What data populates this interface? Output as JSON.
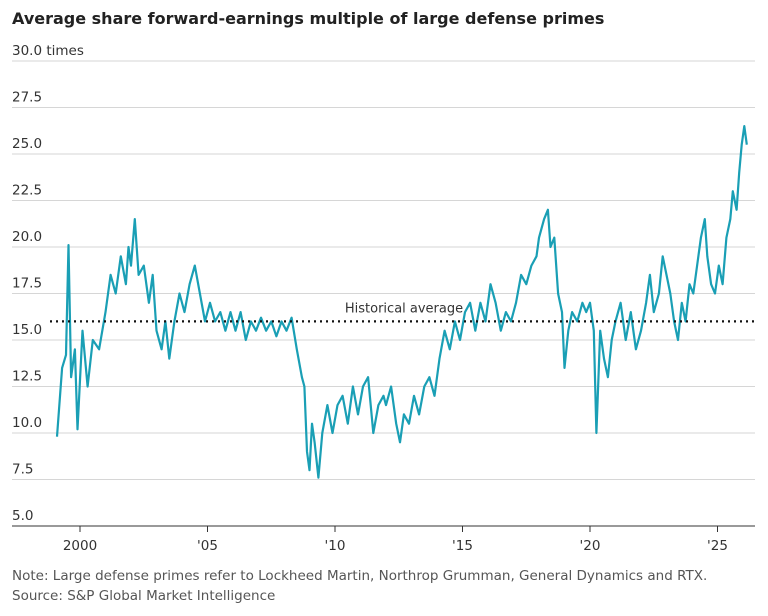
{
  "chart_data": {
    "type": "line",
    "title": "Average share forward-earnings multiple of large defense primes",
    "note": "Note: Large defense primes refer to Lockheed Martin, Northrop Grumman, General Dynamics and RTX.",
    "source": "Source: S&P Global Market Intelligence",
    "color": "#1a9fb5",
    "grid": true,
    "reference_line": {
      "value": 16,
      "label": "Historical average"
    },
    "xlim": [
      1998.8,
      2026.9
    ],
    "xticks": [
      {
        "value": 2000,
        "label": "2000"
      },
      {
        "value": 2005,
        "label": "'05"
      },
      {
        "value": 2010,
        "label": "'10"
      },
      {
        "value": 2015,
        "label": "'15"
      },
      {
        "value": 2020,
        "label": "'20"
      },
      {
        "value": 2025,
        "label": "'25"
      }
    ],
    "ylim": [
      5,
      30
    ],
    "yticks": [
      {
        "value": 5,
        "label": "5.0"
      },
      {
        "value": 7.5,
        "label": "7.5"
      },
      {
        "value": 10,
        "label": "10.0"
      },
      {
        "value": 12.5,
        "label": "12.5"
      },
      {
        "value": 15,
        "label": "15.0"
      },
      {
        "value": 17.5,
        "label": "17.5"
      },
      {
        "value": 20,
        "label": "20.0"
      },
      {
        "value": 22.5,
        "label": "22.5"
      },
      {
        "value": 25,
        "label": "25.0"
      },
      {
        "value": 27.5,
        "label": "27.5"
      },
      {
        "value": 30,
        "label": "30.0 times"
      }
    ],
    "x": [
      1999.1,
      1999.3,
      1999.45,
      1999.55,
      1999.65,
      1999.8,
      1999.9,
      2000.1,
      2000.3,
      2000.5,
      2000.75,
      2001.0,
      2001.2,
      2001.4,
      2001.6,
      2001.8,
      2001.9,
      2002.0,
      2002.15,
      2002.3,
      2002.5,
      2002.7,
      2002.85,
      2003.0,
      2003.2,
      2003.35,
      2003.5,
      2003.7,
      2003.9,
      2004.1,
      2004.3,
      2004.5,
      2004.7,
      2004.9,
      2005.1,
      2005.3,
      2005.5,
      2005.7,
      2005.9,
      2006.1,
      2006.3,
      2006.5,
      2006.7,
      2006.9,
      2007.1,
      2007.3,
      2007.5,
      2007.7,
      2007.9,
      2008.1,
      2008.3,
      2008.5,
      2008.7,
      2008.8,
      2008.9,
      2009.0,
      2009.1,
      2009.2,
      2009.35,
      2009.5,
      2009.7,
      2009.9,
      2010.1,
      2010.3,
      2010.5,
      2010.7,
      2010.9,
      2011.1,
      2011.3,
      2011.5,
      2011.7,
      2011.9,
      2012.0,
      2012.2,
      2012.4,
      2012.55,
      2012.7,
      2012.9,
      2013.1,
      2013.3,
      2013.5,
      2013.7,
      2013.9,
      2014.1,
      2014.3,
      2014.5,
      2014.7,
      2014.9,
      2015.1,
      2015.3,
      2015.5,
      2015.7,
      2015.9,
      2016.1,
      2016.3,
      2016.5,
      2016.7,
      2016.9,
      2017.1,
      2017.3,
      2017.5,
      2017.7,
      2017.9,
      2018.0,
      2018.2,
      2018.35,
      2018.45,
      2018.6,
      2018.75,
      2018.9,
      2019.0,
      2019.15,
      2019.3,
      2019.5,
      2019.7,
      2019.85,
      2020.0,
      2020.15,
      2020.25,
      2020.4,
      2020.55,
      2020.7,
      2020.85,
      2021.0,
      2021.2,
      2021.4,
      2021.6,
      2021.8,
      2022.0,
      2022.2,
      2022.35,
      2022.5,
      2022.7,
      2022.85,
      2023.0,
      2023.15,
      2023.3,
      2023.45,
      2023.6,
      2023.75,
      2023.9,
      2024.05,
      2024.2,
      2024.35,
      2024.5,
      2024.6,
      2024.75,
      2024.9,
      2025.05,
      2025.2,
      2025.35,
      2025.5,
      2025.6,
      2025.75,
      2025.85,
      2025.95,
      2026.05,
      2026.15
    ],
    "values": [
      9.8,
      13.5,
      14.2,
      20.1,
      13.0,
      14.5,
      10.2,
      15.5,
      12.5,
      15.0,
      14.5,
      16.5,
      18.5,
      17.5,
      19.5,
      18.0,
      20.0,
      19.0,
      21.5,
      18.5,
      19.0,
      17.0,
      18.5,
      15.5,
      14.5,
      16.0,
      14.0,
      16.0,
      17.5,
      16.5,
      18.0,
      19.0,
      17.5,
      16.0,
      17.0,
      16.0,
      16.5,
      15.5,
      16.5,
      15.5,
      16.5,
      15.0,
      16.0,
      15.5,
      16.2,
      15.5,
      16.0,
      15.2,
      16.0,
      15.5,
      16.2,
      14.5,
      13.0,
      12.5,
      9.0,
      8.0,
      10.5,
      9.5,
      7.6,
      10.0,
      11.5,
      10.0,
      11.5,
      12.0,
      10.5,
      12.5,
      11.0,
      12.5,
      13.0,
      10.0,
      11.5,
      12.0,
      11.5,
      12.5,
      10.5,
      9.5,
      11.0,
      10.5,
      12.0,
      11.0,
      12.5,
      13.0,
      12.0,
      14.0,
      15.5,
      14.5,
      16.0,
      15.0,
      16.5,
      17.0,
      15.5,
      17.0,
      16.0,
      18.0,
      17.0,
      15.5,
      16.5,
      16.0,
      17.0,
      18.5,
      18.0,
      19.0,
      19.5,
      20.5,
      21.5,
      22.0,
      20.0,
      20.5,
      17.5,
      16.5,
      13.5,
      15.5,
      16.5,
      16.0,
      17.0,
      16.5,
      17.0,
      15.5,
      10.0,
      15.5,
      14.0,
      13.0,
      15.0,
      16.0,
      17.0,
      15.0,
      16.5,
      14.5,
      15.5,
      17.0,
      18.5,
      16.5,
      17.5,
      19.5,
      18.5,
      17.5,
      16.0,
      15.0,
      17.0,
      16.0,
      18.0,
      17.5,
      19.0,
      20.5,
      21.5,
      19.5,
      18.0,
      17.5,
      19.0,
      18.0,
      20.5,
      21.5,
      23.0,
      22.0,
      24.0,
      25.5,
      26.5,
      25.5
    ]
  }
}
